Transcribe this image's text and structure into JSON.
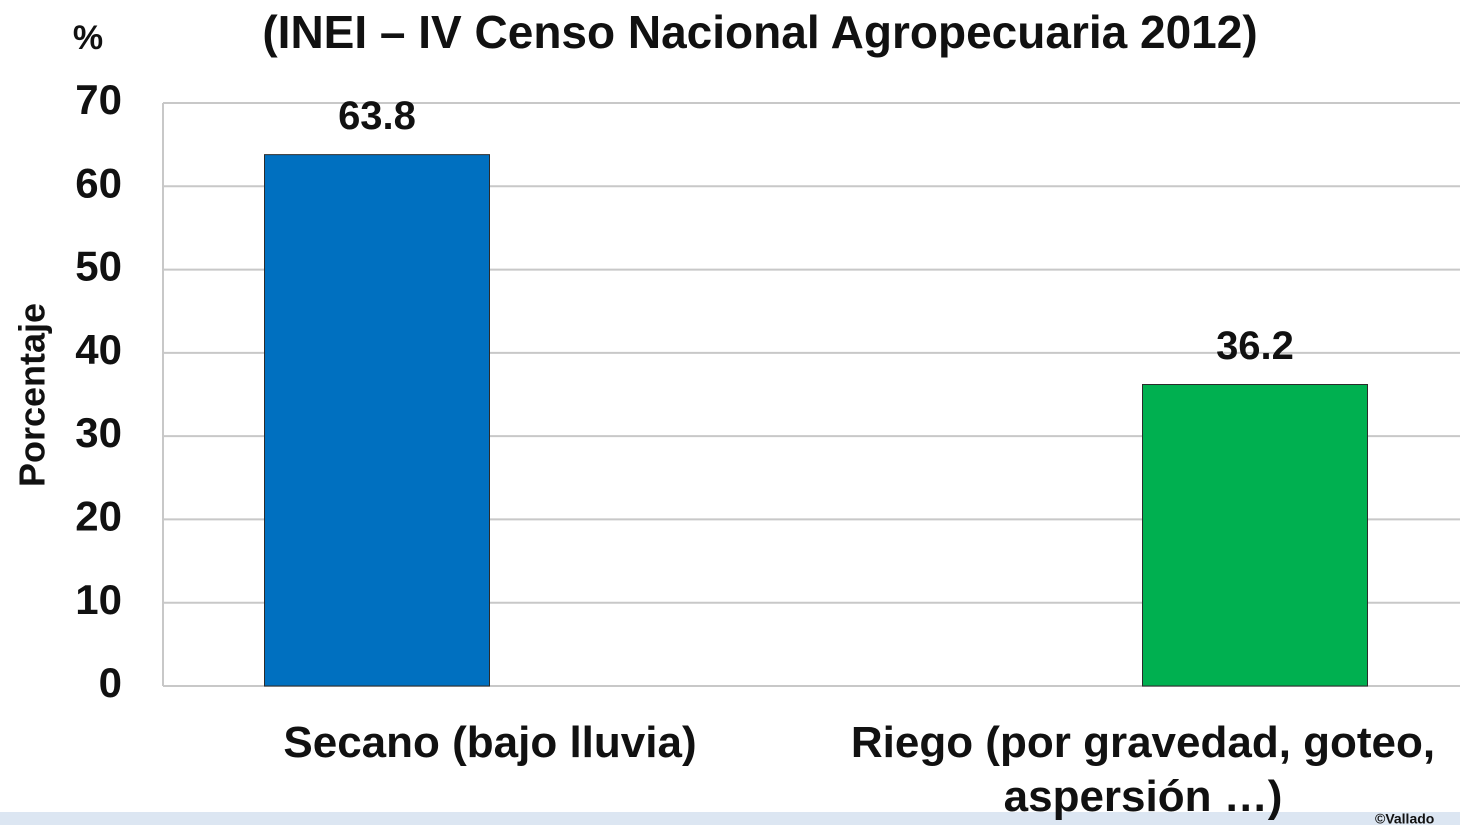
{
  "chart_data": {
    "type": "bar",
    "title": "(INEI – IV Censo Nacional Agropecuaria 2012)",
    "unit_label": "%",
    "y_label": "Porcentaje",
    "categories": [
      "Secano (bajo lluvia)",
      "Riego (por gravedad, goteo, aspersión …)"
    ],
    "values": [
      63.8,
      36.2
    ],
    "colors": [
      "#0070c0",
      "#00b050"
    ],
    "ylim": [
      0,
      70
    ],
    "yticks": [
      0,
      10,
      20,
      30,
      40,
      50,
      60,
      70
    ],
    "grid": true,
    "credit": "©Vallado"
  }
}
